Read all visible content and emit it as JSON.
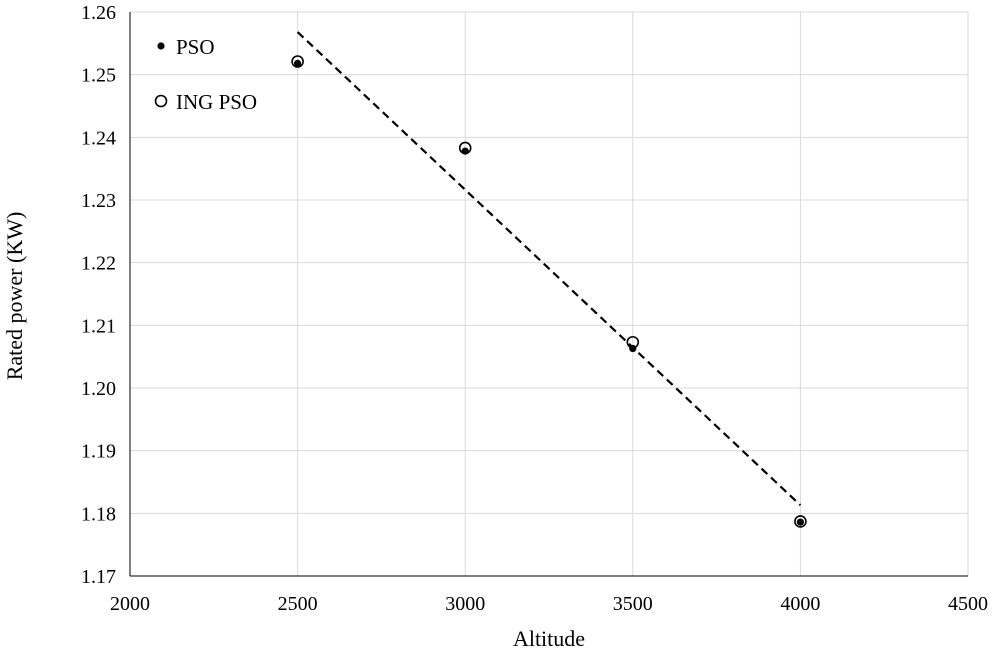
{
  "chart_data": {
    "type": "scatter",
    "title": "",
    "xlabel": "Altitude",
    "ylabel": "Rated power (KW)",
    "xlim": [
      2000,
      4500
    ],
    "ylim": [
      1.17,
      1.26
    ],
    "xticks": [
      "2000",
      "2500",
      "3000",
      "3500",
      "4000",
      "4500"
    ],
    "yticks": [
      "1.17",
      "1.18",
      "1.19",
      "1.20",
      "1.21",
      "1.22",
      "1.23",
      "1.24",
      "1.25",
      "1.26"
    ],
    "grid": true,
    "legend_position": "top-left",
    "series": [
      {
        "name": "PSO",
        "marker": "filled-circle",
        "color": "#000000",
        "x": [
          2500,
          3000,
          3500,
          4000
        ],
        "y": [
          1.2518,
          1.2378,
          1.2063,
          1.1786
        ]
      },
      {
        "name": "ING PSO",
        "marker": "open-circle",
        "color": "#000000",
        "x": [
          2500,
          3000,
          3500,
          4000
        ],
        "y": [
          1.2521,
          1.2383,
          1.2073,
          1.1787
        ]
      }
    ],
    "trendline": {
      "style": "dashed",
      "color": "#000000",
      "x": [
        2500,
        4000
      ],
      "y": [
        1.2568,
        1.1813
      ]
    }
  }
}
